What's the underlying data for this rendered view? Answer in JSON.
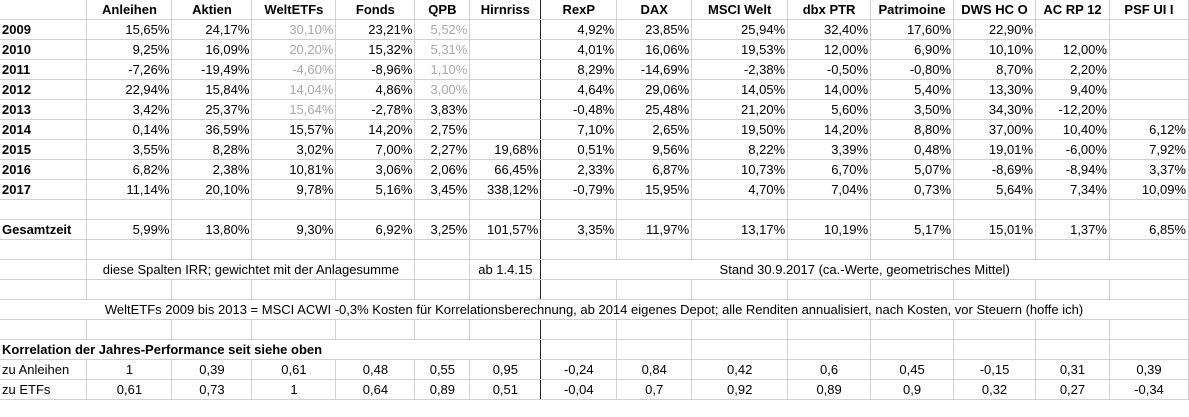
{
  "headers": [
    "",
    "Anleihen",
    "Aktien",
    "WeltETFs",
    "Fonds",
    "QPB",
    "Hirnriss",
    "RexP",
    "DAX",
    "MSCI Welt",
    "dbx PTR",
    "Patrimoine",
    "DWS HC O",
    "AC RP 12",
    "PSF UI I"
  ],
  "years": [
    {
      "year": "2009",
      "values": [
        "15,65%",
        "24,17%",
        "30,10%",
        "23,21%",
        "5,52%",
        "",
        "4,92%",
        "23,85%",
        "25,94%",
        "32,40%",
        "17,60%",
        "22,90%",
        "",
        ""
      ],
      "grey": [
        2,
        4
      ]
    },
    {
      "year": "2010",
      "values": [
        "9,25%",
        "16,09%",
        "20,20%",
        "15,32%",
        "5,31%",
        "",
        "4,01%",
        "16,06%",
        "19,53%",
        "12,00%",
        "6,90%",
        "10,10%",
        "12,00%",
        ""
      ],
      "grey": [
        2,
        4
      ]
    },
    {
      "year": "2011",
      "values": [
        "-7,26%",
        "-19,49%",
        "-4,60%",
        "-8,96%",
        "1,10%",
        "",
        "8,29%",
        "-14,69%",
        "-2,38%",
        "-0,50%",
        "-0,80%",
        "8,70%",
        "2,20%",
        ""
      ],
      "grey": [
        2,
        4
      ]
    },
    {
      "year": "2012",
      "values": [
        "22,94%",
        "15,84%",
        "14,04%",
        "4,86%",
        "3,00%",
        "",
        "4,64%",
        "29,06%",
        "14,05%",
        "14,00%",
        "5,40%",
        "13,30%",
        "9,40%",
        ""
      ],
      "grey": [
        2,
        4
      ]
    },
    {
      "year": "2013",
      "values": [
        "3,42%",
        "25,37%",
        "15,64%",
        "-2,78%",
        "3,83%",
        "",
        "-0,48%",
        "25,48%",
        "21,20%",
        "5,60%",
        "3,50%",
        "34,30%",
        "-12,20%",
        ""
      ],
      "grey": [
        2
      ]
    },
    {
      "year": "2014",
      "values": [
        "0,14%",
        "36,59%",
        "15,57%",
        "14,20%",
        "2,75%",
        "",
        "7,10%",
        "2,65%",
        "19,50%",
        "14,20%",
        "8,80%",
        "37,00%",
        "10,40%",
        "6,12%"
      ],
      "grey": []
    },
    {
      "year": "2015",
      "values": [
        "3,55%",
        "8,28%",
        "3,02%",
        "7,00%",
        "2,27%",
        "19,68%",
        "0,51%",
        "9,56%",
        "8,22%",
        "3,39%",
        "0,48%",
        "19,01%",
        "-6,00%",
        "7,92%"
      ],
      "grey": []
    },
    {
      "year": "2016",
      "values": [
        "6,82%",
        "2,38%",
        "10,81%",
        "3,06%",
        "2,06%",
        "66,45%",
        "2,33%",
        "6,87%",
        "10,73%",
        "6,70%",
        "5,07%",
        "-8,69%",
        "-8,94%",
        "3,37%"
      ],
      "grey": []
    },
    {
      "year": "2017",
      "values": [
        "11,14%",
        "20,10%",
        "9,78%",
        "5,16%",
        "3,45%",
        "338,12%",
        "-0,79%",
        "15,95%",
        "4,70%",
        "7,04%",
        "0,73%",
        "5,64%",
        "7,34%",
        "10,09%"
      ],
      "grey": []
    }
  ],
  "total": {
    "label": "Gesamtzeit",
    "values": [
      "5,99%",
      "13,80%",
      "9,30%",
      "6,92%",
      "3,25%",
      "101,57%",
      "3,35%",
      "11,97%",
      "13,17%",
      "10,19%",
      "5,17%",
      "15,01%",
      "1,37%",
      "6,85%"
    ]
  },
  "notes": {
    "irr": "diese Spalten IRR; gewichtet mit der Anlagesumme",
    "since": "ab 1.4.15",
    "stand": "Stand 30.9.2017 (ca.-Werte, geometrisches Mittel)",
    "weltetfs": "WeltETFs 2009 bis 2013 = MSCI ACWI -0,3% Kosten für Korrelationsberechnung, ab 2014 eigenes Depot; alle Renditen annualisiert, nach Kosten, vor Steuern (hoffe ich)"
  },
  "correlation": {
    "title": "Korrelation der Jahres-Performance seit siehe oben",
    "rows": [
      {
        "label": "zu Anleihen",
        "values": [
          "1",
          "0,39",
          "0,61",
          "0,48",
          "0,55",
          "0,95",
          "-0,24",
          "0,84",
          "0,42",
          "0,6",
          "0,45",
          "-0,15",
          "0,31",
          "0,39"
        ]
      },
      {
        "label": "zu ETFs",
        "values": [
          "0,61",
          "0,73",
          "1",
          "0,64",
          "0,89",
          "0,51",
          "-0,04",
          "0,7",
          "0,92",
          "0,89",
          "0,9",
          "0,32",
          "0,27",
          "-0,34"
        ]
      }
    ]
  }
}
